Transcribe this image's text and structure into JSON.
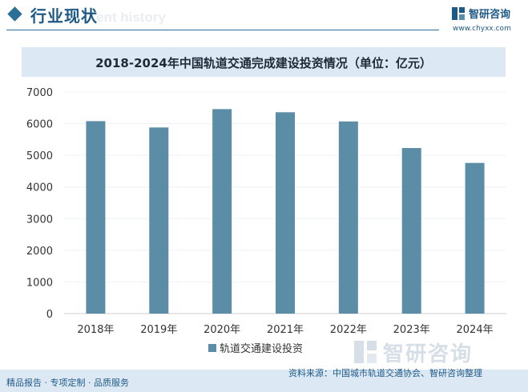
{
  "header": {
    "section_title": "行业现状",
    "watermark_text": "ent history",
    "logo_name": "智研咨询",
    "logo_url": "www.chyxx.com"
  },
  "chart_data": {
    "type": "bar",
    "title": "2018-2024年中国轨道交通完成建设投资情况（单位：亿元）",
    "categories": [
      "2018年",
      "2019年",
      "2020年",
      "2021年",
      "2022年",
      "2023年",
      "2024年"
    ],
    "series": [
      {
        "name": "轨道交通建设投资",
        "values": [
          6080,
          5880,
          6460,
          6360,
          6070,
          5230,
          4760
        ]
      }
    ],
    "ylim": [
      0,
      7000
    ],
    "yticks": [
      0,
      1000,
      2000,
      3000,
      4000,
      5000,
      6000,
      7000
    ],
    "xlabel": "",
    "ylabel": "",
    "legend_position": "bottom",
    "bar_color": "#5b8ea6"
  },
  "footer": {
    "left_text": "精品报告 · 专项定制 · 品质服务",
    "source_text": "资料来源：中国城市轨道交通协会、智研咨询整理",
    "watermark_text": "智研咨询"
  }
}
